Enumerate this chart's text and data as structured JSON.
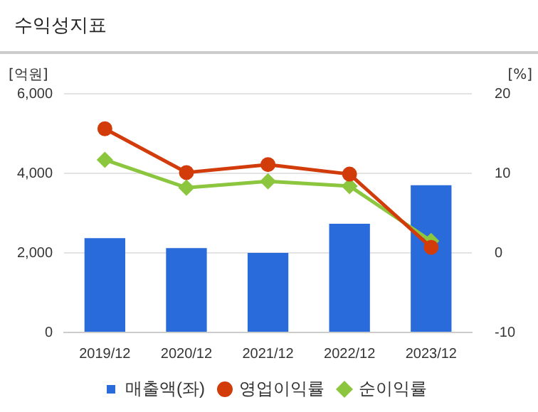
{
  "chart_data": {
    "type": "bar",
    "title": "수익성지표",
    "ylabel": "[억원]",
    "y2label": "[%]",
    "categories": [
      "2019/12",
      "2020/12",
      "2021/12",
      "2022/12",
      "2023/12"
    ],
    "series": [
      {
        "name": "매출액(좌)",
        "color": "#2a6bdc",
        "values": [
          2370,
          2120,
          2000,
          2730,
          3700
        ]
      },
      {
        "name": "영업이익률",
        "type": "line",
        "axis": "y2",
        "marker": "circle",
        "color": "#d23c0a",
        "values": [
          15.6,
          10.1,
          11.1,
          9.9,
          0.7
        ]
      },
      {
        "name": "순이익률",
        "type": "line",
        "axis": "y2",
        "marker": "diamond",
        "color": "#8cc63f",
        "values": [
          11.7,
          8.2,
          9.0,
          8.4,
          1.5
        ]
      }
    ],
    "ylim": [
      0,
      6000
    ],
    "yticks": [
      {
        "value": 0,
        "label": "0"
      },
      {
        "value": 2000,
        "label": "2,000"
      },
      {
        "value": 4000,
        "label": "4,000"
      },
      {
        "value": 6000,
        "label": "6,000"
      }
    ],
    "y2lim": [
      -10,
      20
    ],
    "y2ticks": [
      -10,
      0,
      10,
      20
    ],
    "grid": "y",
    "legend": "bottom"
  }
}
